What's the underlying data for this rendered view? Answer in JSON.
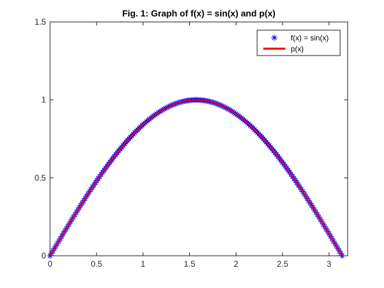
{
  "chart_data": {
    "type": "line",
    "title": "Fig. 1: Graph of f(x) = sin(x) and p(x)",
    "xlabel": "",
    "ylabel": "",
    "xlim": [
      0,
      3.2
    ],
    "ylim": [
      0,
      1.5
    ],
    "xticks": [
      0,
      0.5,
      1,
      1.5,
      2,
      2.5,
      3
    ],
    "xtick_labels": [
      "0",
      "0.5",
      "1",
      "1.5",
      "2",
      "2.5",
      "3"
    ],
    "yticks": [
      0,
      0.5,
      1,
      1.5
    ],
    "ytick_labels": [
      "0",
      "0.5",
      "1",
      "1.5"
    ],
    "grid": false,
    "legend_position": "top-right",
    "x": [
      0,
      0.0785,
      0.1571,
      0.2356,
      0.3142,
      0.3927,
      0.4712,
      0.5498,
      0.6283,
      0.7069,
      0.7854,
      0.8639,
      0.9425,
      1.021,
      1.0996,
      1.1781,
      1.2566,
      1.3352,
      1.4137,
      1.4923,
      1.5708,
      1.6493,
      1.7279,
      1.8064,
      1.885,
      1.9635,
      2.042,
      2.1206,
      2.1991,
      2.2777,
      2.3562,
      2.4347,
      2.5133,
      2.5918,
      2.6704,
      2.7489,
      2.8274,
      2.906,
      2.9845,
      3.0631,
      3.1416
    ],
    "series": [
      {
        "name": "f(x) = sin(x)",
        "style": "markers",
        "marker": "asterisk",
        "color": "#0000ff",
        "values": [
          0,
          0.0785,
          0.1564,
          0.2334,
          0.309,
          0.3827,
          0.454,
          0.5225,
          0.5878,
          0.6494,
          0.7071,
          0.7604,
          0.809,
          0.8526,
          0.891,
          0.9239,
          0.9511,
          0.9724,
          0.9877,
          0.9969,
          1.0,
          0.9969,
          0.9877,
          0.9724,
          0.9511,
          0.9239,
          0.891,
          0.8526,
          0.809,
          0.7604,
          0.7071,
          0.6494,
          0.5878,
          0.5225,
          0.454,
          0.3827,
          0.309,
          0.2334,
          0.1564,
          0.0785,
          0
        ]
      },
      {
        "name": "p(x)",
        "style": "line",
        "color": "#ff0000",
        "values": [
          0,
          0.0785,
          0.1564,
          0.2334,
          0.309,
          0.3827,
          0.454,
          0.5225,
          0.5878,
          0.6494,
          0.7071,
          0.7604,
          0.809,
          0.8526,
          0.891,
          0.9239,
          0.9511,
          0.9724,
          0.9877,
          0.9969,
          1.0,
          0.9969,
          0.9877,
          0.9724,
          0.9511,
          0.9239,
          0.891,
          0.8526,
          0.809,
          0.7604,
          0.7071,
          0.6494,
          0.5878,
          0.5225,
          0.454,
          0.3827,
          0.309,
          0.2334,
          0.1564,
          0.0785,
          0
        ]
      }
    ]
  }
}
